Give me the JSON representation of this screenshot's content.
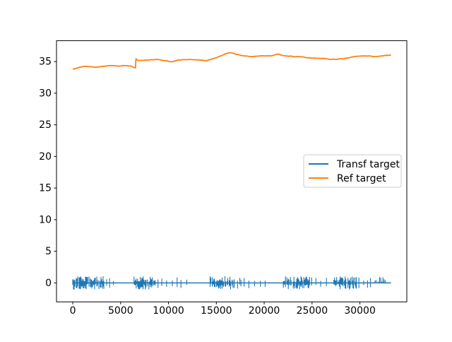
{
  "figure": {
    "background": "#ffffff",
    "axes_edge_color": "#000000"
  },
  "chart_data": {
    "type": "line",
    "title": "",
    "xlabel": "",
    "ylabel": "",
    "grid": false,
    "xlim": [
      -1700,
      34900
    ],
    "ylim": [
      -3.0,
      38.3
    ],
    "x_ticks": [
      0,
      5000,
      10000,
      15000,
      20000,
      25000,
      30000
    ],
    "y_ticks": [
      0,
      5,
      10,
      15,
      20,
      25,
      30,
      35
    ],
    "legend": {
      "position": "center-right",
      "border_color": "#cccccc",
      "background": "rgba(255,255,255,0.8)"
    },
    "series": [
      {
        "name": "Transf target",
        "color": "#1f77b4",
        "kind": "noise-line",
        "baseline": 0,
        "x_start": 0,
        "x_end": 33250,
        "spike_amp": 0.9,
        "dense_clusters": [
          {
            "start": 0,
            "end": 3300
          },
          {
            "start": 6400,
            "end": 8750
          },
          {
            "start": 14350,
            "end": 16700
          },
          {
            "start": 22000,
            "end": 24800
          },
          {
            "start": 27200,
            "end": 29700
          }
        ],
        "medium_clusters": [
          {
            "start": 16750,
            "end": 17650,
            "mode": "both"
          },
          {
            "start": 31350,
            "end": 32700,
            "mode": "up"
          }
        ],
        "sparse_spikes": [
          3550,
          3850,
          4250,
          8900,
          9300,
          9800,
          10400,
          10900,
          11300,
          11900,
          17900,
          18400,
          19000,
          19600,
          20100,
          24950,
          25400,
          25900,
          26500,
          29900,
          30400,
          30800,
          31100
        ]
      },
      {
        "name": "Ref target",
        "color": "#ff7f0e",
        "kind": "line",
        "points": [
          [
            0,
            33.8
          ],
          [
            400,
            33.95
          ],
          [
            900,
            34.15
          ],
          [
            1400,
            34.25
          ],
          [
            1900,
            34.2
          ],
          [
            2400,
            34.1
          ],
          [
            2900,
            34.2
          ],
          [
            3500,
            34.3
          ],
          [
            4200,
            34.35
          ],
          [
            5000,
            34.3
          ],
          [
            5600,
            34.35
          ],
          [
            6100,
            34.3
          ],
          [
            6400,
            34.05
          ],
          [
            6550,
            34.0
          ],
          [
            6600,
            35.45
          ],
          [
            6750,
            35.2
          ],
          [
            7600,
            35.25
          ],
          [
            8200,
            35.3
          ],
          [
            8700,
            35.35
          ],
          [
            9200,
            35.25
          ],
          [
            9700,
            35.15
          ],
          [
            10100,
            35.0
          ],
          [
            10500,
            35.0
          ],
          [
            11000,
            35.25
          ],
          [
            11700,
            35.3
          ],
          [
            12500,
            35.3
          ],
          [
            13200,
            35.25
          ],
          [
            13800,
            35.15
          ],
          [
            14300,
            35.3
          ],
          [
            15000,
            35.6
          ],
          [
            15600,
            35.95
          ],
          [
            16000,
            36.25
          ],
          [
            16400,
            36.4
          ],
          [
            16800,
            36.3
          ],
          [
            17300,
            36.1
          ],
          [
            17900,
            35.9
          ],
          [
            18500,
            35.8
          ],
          [
            19200,
            35.85
          ],
          [
            20000,
            35.9
          ],
          [
            20700,
            35.9
          ],
          [
            21100,
            36.05
          ],
          [
            21400,
            36.2
          ],
          [
            21800,
            36.0
          ],
          [
            22300,
            35.9
          ],
          [
            23000,
            35.8
          ],
          [
            23800,
            35.75
          ],
          [
            24500,
            35.6
          ],
          [
            25200,
            35.55
          ],
          [
            26000,
            35.5
          ],
          [
            26700,
            35.4
          ],
          [
            27400,
            35.35
          ],
          [
            28100,
            35.45
          ],
          [
            28800,
            35.55
          ],
          [
            29300,
            35.75
          ],
          [
            29800,
            35.85
          ],
          [
            30500,
            35.9
          ],
          [
            31200,
            35.85
          ],
          [
            31800,
            35.8
          ],
          [
            32300,
            35.9
          ],
          [
            32800,
            36.0
          ],
          [
            33250,
            36.05
          ]
        ]
      }
    ]
  }
}
